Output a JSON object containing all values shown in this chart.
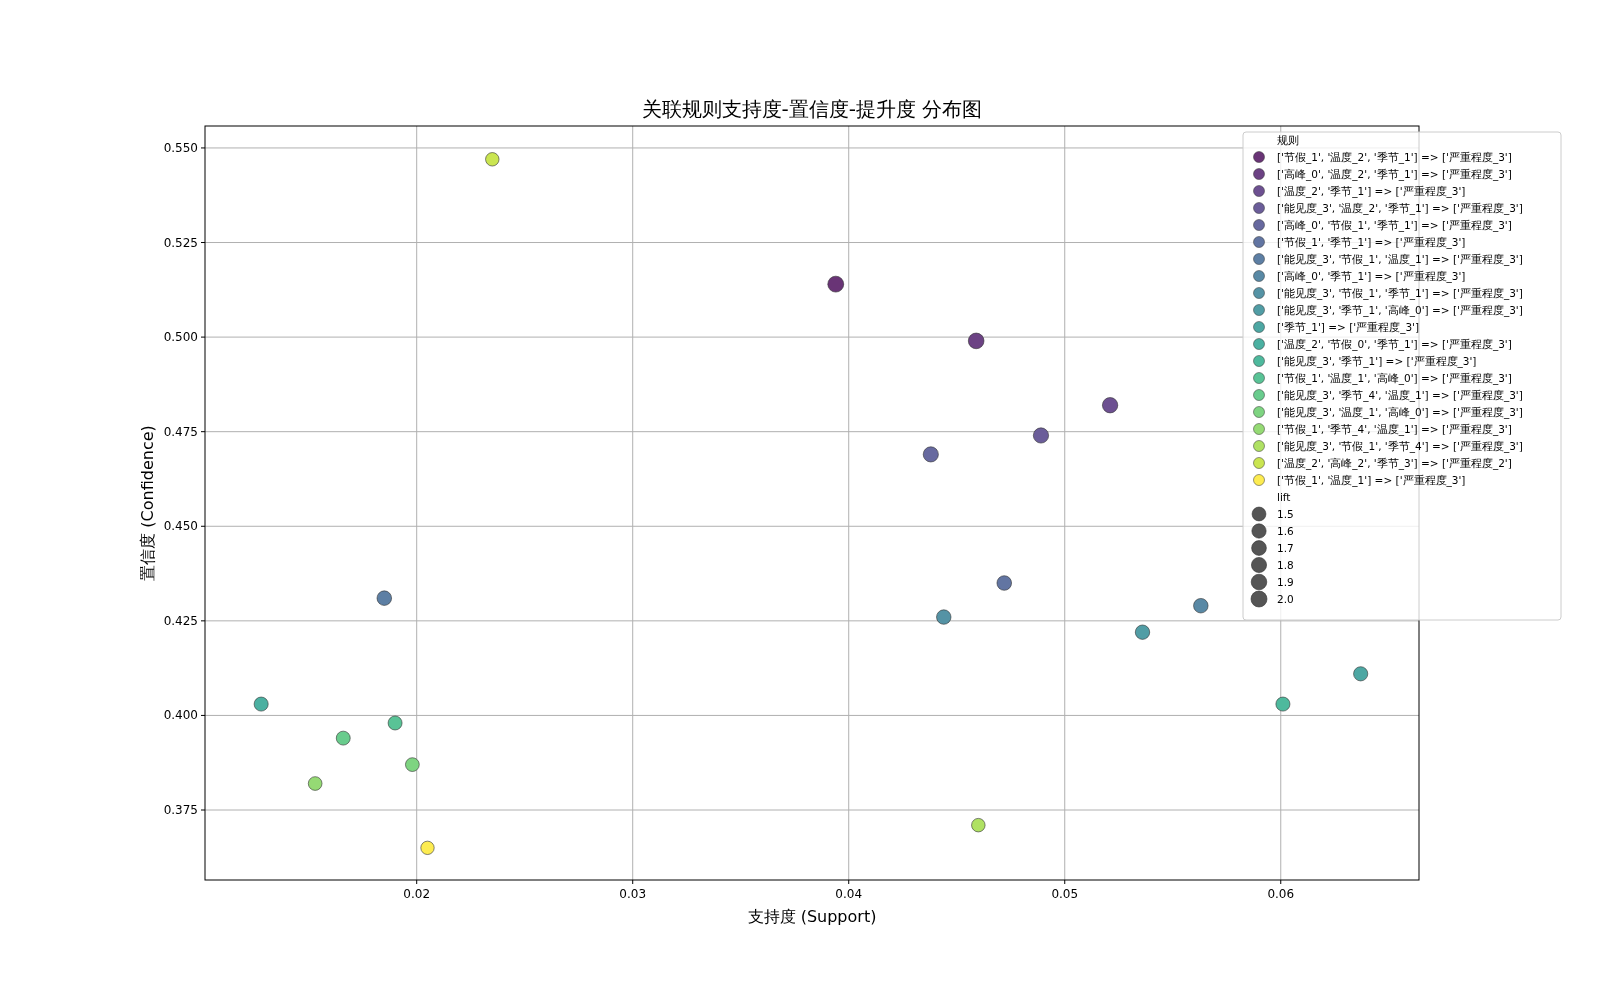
{
  "chart_data": {
    "type": "bubble",
    "title": "关联规则支持度-置信度-提升度 分布图",
    "xlabel": "支持度 (Support)",
    "ylabel": "置信度 (Confidence)",
    "legend_title": "规则",
    "annotations": [
      "lift"
    ],
    "xlim": [
      0.0102,
      0.0664
    ],
    "xticks": [
      0.02,
      0.03,
      0.04,
      0.05,
      0.06
    ],
    "ylim": [
      0.3565,
      0.5558
    ],
    "yticks": [
      {
        "value": 0.375,
        "label": "0.375"
      },
      {
        "value": 0.4,
        "label": "0.400"
      },
      {
        "value": 0.425,
        "label": "0.425"
      },
      {
        "value": 0.45,
        "label": "0.450"
      },
      {
        "value": 0.475,
        "label": "0.475"
      },
      {
        "value": 0.5,
        "label": "0.500"
      },
      {
        "value": 0.525,
        "label": "0.525"
      },
      {
        "value": 0.55,
        "label": "0.550"
      }
    ],
    "grid": true,
    "legend": "top right",
    "marker": "circle",
    "size_legend": [
      1.5,
      1.6,
      1.7,
      1.8,
      1.9,
      {
        "value": 2.0,
        "label": "2.0"
      }
    ],
    "series": [
      {
        "name": "['节假_1', '温度_2', '季节_1'] => ['严重程度_3']",
        "color": "#693476",
        "x": [
          0.0394
        ],
        "values": [
          0.514
        ],
        "sizes": [
          1.98
        ]
      },
      {
        "name": "['高峰_0', '温度_2', '季节_1'] => ['严重程度_3']",
        "color": "#6c4284",
        "x": [
          0.0459
        ],
        "values": [
          0.499
        ],
        "sizes": [
          1.92
        ]
      },
      {
        "name": "['温度_2', '季节_1'] => ['严重程度_3']",
        "color": "#6d5091",
        "x": [
          0.0521
        ],
        "values": [
          0.482
        ],
        "sizes": [
          1.85
        ]
      },
      {
        "name": "['能见度_3', '温度_2', '季节_1'] => ['严重程度_3']",
        "color": "#6b5d99",
        "x": [
          0.0489
        ],
        "values": [
          0.474
        ],
        "sizes": [
          1.82
        ]
      },
      {
        "name": "['高峰_0', '节假_1', '季节_1'] => ['严重程度_3']",
        "color": "#67699f",
        "x": [
          0.0438
        ],
        "values": [
          0.469
        ],
        "sizes": [
          1.8
        ]
      },
      {
        "name": "['节假_1', '季节_1'] => ['严重程度_3']",
        "color": "#6275a2",
        "x": [
          0.0472
        ],
        "values": [
          0.435
        ],
        "sizes": [
          1.67
        ]
      },
      {
        "name": "['能见度_3', '节假_1', '温度_1'] => ['严重程度_3']",
        "color": "#5d7fa4",
        "x": [
          0.0185
        ],
        "values": [
          0.431
        ],
        "sizes": [
          1.66
        ]
      },
      {
        "name": "['高峰_0', '季节_1'] => ['严重程度_3']",
        "color": "#5989a5",
        "x": [
          0.0563
        ],
        "values": [
          0.429
        ],
        "sizes": [
          1.65
        ]
      },
      {
        "name": "['能见度_3', '节假_1', '季节_1'] => ['严重程度_3']",
        "color": "#5593a5",
        "x": [
          0.0444
        ],
        "values": [
          0.426
        ],
        "sizes": [
          1.64
        ]
      },
      {
        "name": "['能见度_3', '季节_1', '高峰_0'] => ['严重程度_3']",
        "color": "#519da5",
        "x": [
          0.0536
        ],
        "values": [
          0.422
        ],
        "sizes": [
          1.62
        ]
      },
      {
        "name": "['季节_1'] => ['严重程度_3']",
        "color": "#4da7a3",
        "x": [
          0.0637
        ],
        "values": [
          0.411
        ],
        "sizes": [
          1.58
        ]
      },
      {
        "name": "['温度_2', '节假_0', '季节_1'] => ['严重程度_3']",
        "color": "#4bb0a1",
        "x": [
          0.0128
        ],
        "values": [
          0.403
        ],
        "sizes": [
          1.55
        ]
      },
      {
        "name": "['能见度_3', '季节_1'] => ['严重程度_3']",
        "color": "#4eb99d",
        "x": [
          0.0601
        ],
        "values": [
          0.403
        ],
        "sizes": [
          1.55
        ]
      },
      {
        "name": "['节假_1', '温度_1', '高峰_0'] => ['严重程度_3']",
        "color": "#59c396",
        "x": [
          0.019
        ],
        "values": [
          0.398
        ],
        "sizes": [
          1.53
        ]
      },
      {
        "name": "['能见度_3', '季节_4', '温度_1'] => ['严重程度_3']",
        "color": "#69cc8d",
        "x": [
          0.0166
        ],
        "values": [
          0.394
        ],
        "sizes": [
          1.52
        ]
      },
      {
        "name": "['能见度_3', '温度_1', '高峰_0'] => ['严重程度_3']",
        "color": "#7ed481",
        "x": [
          0.0198
        ],
        "values": [
          0.387
        ],
        "sizes": [
          1.49
        ]
      },
      {
        "name": "['节假_1', '季节_4', '温度_1'] => ['严重程度_3']",
        "color": "#95da74",
        "x": [
          0.0153
        ],
        "values": [
          0.382
        ],
        "sizes": [
          1.47
        ]
      },
      {
        "name": "['能见度_3', '节假_1', '季节_4'] => ['严重程度_3']",
        "color": "#afe163",
        "x": [
          0.046
        ],
        "values": [
          0.371
        ],
        "sizes": [
          1.43
        ]
      },
      {
        "name": "['温度_2', '高峰_2', '季节_3'] => ['严重程度_2']",
        "color": "#cae551",
        "x": [
          0.0235
        ],
        "values": [
          0.547
        ],
        "sizes": [
          1.42
        ]
      },
      {
        "name": "['节假_1', '温度_1'] => ['严重程度_3']",
        "color": "#fdec51",
        "x": [
          0.0205
        ],
        "values": [
          0.365
        ],
        "sizes": [
          1.4
        ]
      }
    ]
  }
}
